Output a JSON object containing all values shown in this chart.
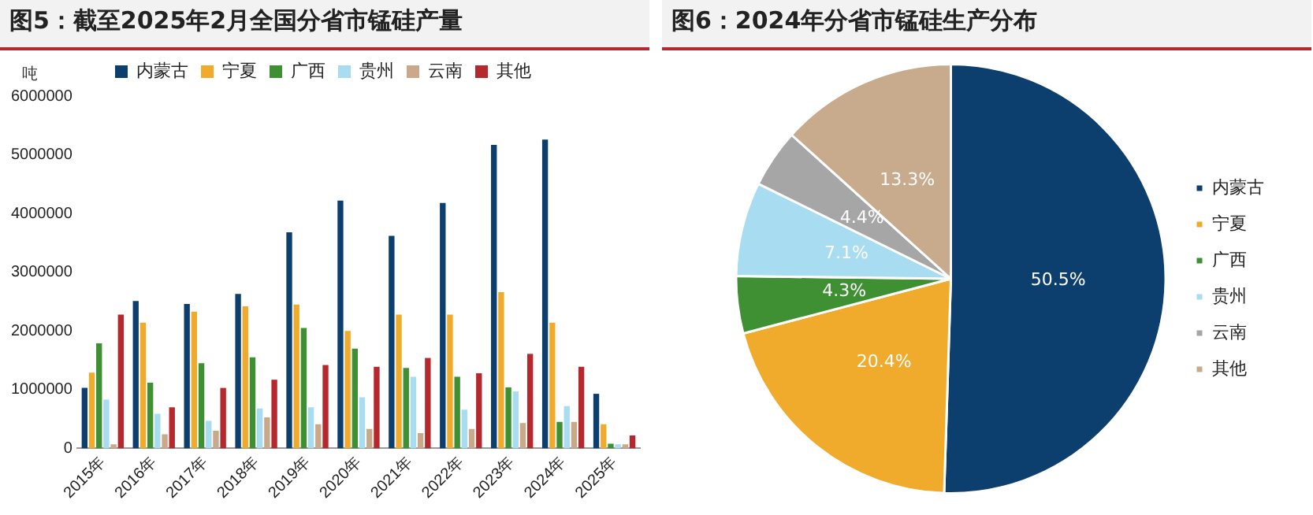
{
  "chart_data": [
    {
      "type": "bar",
      "title": "图5：截至2025年2月全国分省市锰硅产量",
      "ylabel": "吨",
      "categories": [
        "2015年",
        "2016年",
        "2017年",
        "2018年",
        "2019年",
        "2020年",
        "2021年",
        "2022年",
        "2023年",
        "2024年",
        "2025年"
      ],
      "series": [
        {
          "name": "内蒙古",
          "color": "#0d3f6e",
          "values": [
            1030000,
            2510000,
            2460000,
            2630000,
            3680000,
            4220000,
            3620000,
            4180000,
            5170000,
            5260000,
            930000
          ]
        },
        {
          "name": "宁夏",
          "color": "#f0ab2c",
          "values": [
            1290000,
            2140000,
            2330000,
            2420000,
            2450000,
            2000000,
            2280000,
            2280000,
            2660000,
            2140000,
            410000
          ]
        },
        {
          "name": "广西",
          "color": "#3f8f33",
          "values": [
            1790000,
            1120000,
            1450000,
            1550000,
            2050000,
            1700000,
            1370000,
            1220000,
            1040000,
            450000,
            80000
          ]
        },
        {
          "name": "贵州",
          "color": "#a8dcf0",
          "values": [
            830000,
            590000,
            470000,
            680000,
            700000,
            870000,
            1220000,
            660000,
            970000,
            720000,
            70000
          ]
        },
        {
          "name": "云南",
          "color": "#c9a98a",
          "values": [
            70000,
            240000,
            300000,
            530000,
            410000,
            330000,
            260000,
            330000,
            430000,
            450000,
            70000
          ]
        },
        {
          "name": "其他",
          "color": "#b5282e",
          "values": [
            2280000,
            700000,
            1030000,
            1170000,
            1420000,
            1390000,
            1540000,
            1280000,
            1610000,
            1390000,
            220000
          ]
        }
      ],
      "ylim": [
        0,
        6000000
      ],
      "yticks": [
        0,
        1000000,
        2000000,
        3000000,
        4000000,
        5000000,
        6000000
      ],
      "grid": false,
      "legend": "top"
    },
    {
      "type": "pie",
      "title": "图6：2024年分省市锰硅生产分布",
      "categories": [
        "内蒙古",
        "宁夏",
        "广西",
        "贵州",
        "云南",
        "其他"
      ],
      "values": [
        50.5,
        20.4,
        4.3,
        7.1,
        4.4,
        13.3
      ],
      "value_labels": [
        "50.5%",
        "20.4%",
        "4.3%",
        "7.1%",
        "4.4%",
        "13.3%"
      ],
      "colors": [
        "#0d3f6e",
        "#f0ab2c",
        "#3f8f33",
        "#a8dcf0",
        "#a6a6a6",
        "#c8ab8c"
      ],
      "legend": "right"
    }
  ]
}
